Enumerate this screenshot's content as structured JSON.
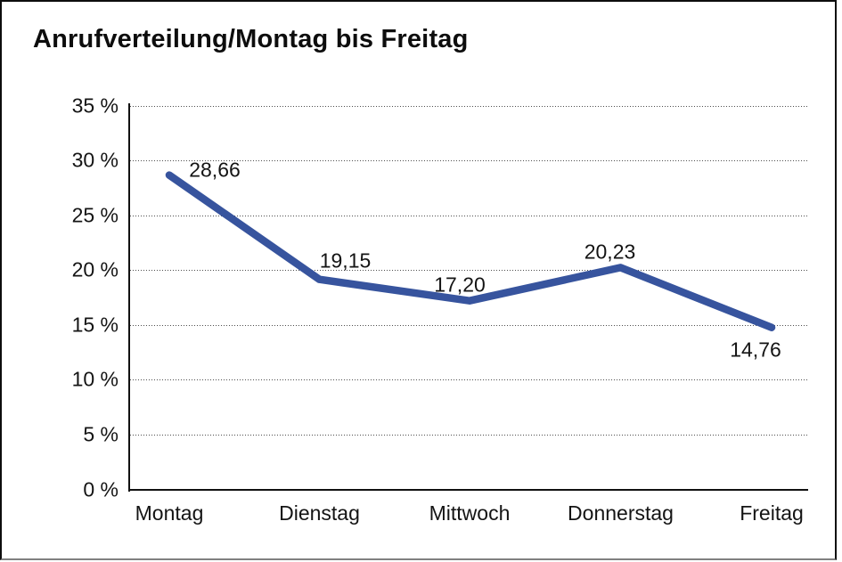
{
  "chart_data": {
    "type": "line",
    "title": "Anrufverteilung/Montag bis Freitag",
    "categories": [
      "Montag",
      "Dienstag",
      "Mittwoch",
      "Donnerstag",
      "Freitag"
    ],
    "values": [
      28.66,
      19.15,
      17.2,
      20.23,
      14.76
    ],
    "data_labels": [
      "28,66",
      "19,15",
      "17,20",
      "20,23",
      "14,76"
    ],
    "y_tick_values": [
      0,
      5,
      10,
      15,
      20,
      25,
      30,
      35
    ],
    "y_tick_labels": [
      "0 %",
      "5 %",
      "10 %",
      "15 %",
      "20 %",
      "25 %",
      "30 %",
      "35 %"
    ],
    "ylim": [
      0,
      35
    ],
    "xlabel": "",
    "ylabel": "",
    "legend": "none",
    "grid": "horizontal-dotted",
    "line_color": "#37549E"
  }
}
